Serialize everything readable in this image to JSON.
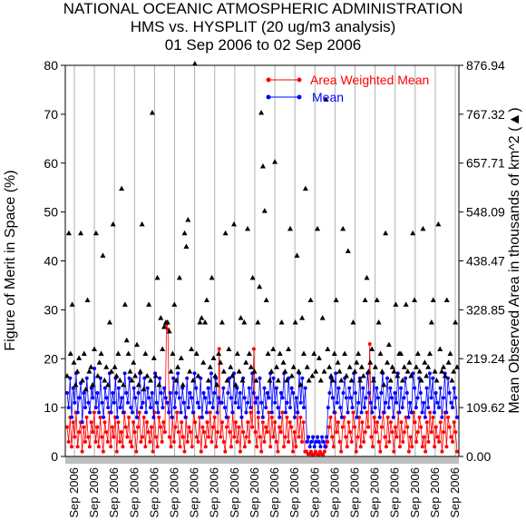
{
  "chart_data": {
    "type": "line",
    "title": "NATIONAL OCEANIC ATMOSPHERIC ADMINISTRATION",
    "subtitle": "HMS vs. HYSPLIT (20 ug/m3 analysis)",
    "date_range": "01 Sep 2006 to 02 Sep 2006",
    "ylabel": "Figure of Merit in Space (%)",
    "y2label": "Mean Observed Area in thousands of km^2 (▲)",
    "ylim": [
      0,
      80
    ],
    "y2lim": [
      0,
      876.94
    ],
    "yticks": [
      "0",
      "10",
      "20",
      "30",
      "40",
      "50",
      "60",
      "70",
      "80"
    ],
    "y2ticks": [
      "0.00",
      "109.62",
      "219.24",
      "328.85",
      "438.47",
      "548.09",
      "657.71",
      "767.32",
      "876.94"
    ],
    "xticks": [
      "Sep 2006",
      "Sep 2006",
      "Sep 2006",
      "Sep 2006",
      "Sep 2006",
      "Sep 2006",
      "Sep 2006",
      "Sep 2006",
      "Sep 2006",
      "Sep 2006",
      "Sep 2006",
      "Sep 2006",
      "Sep 2006",
      "Sep 2006",
      "Sep 2006",
      "Sep 2006",
      "Sep 2006",
      "Sep 2006",
      "Sep 2006",
      "Sep 2006",
      "Sep 2006",
      "Sep 2006",
      "Sep 2006",
      "Sep 2006",
      "Sep 2006",
      "Sep 2006",
      "Sep 2006",
      "Sep 2006",
      "Sep 2006",
      "Sep 2006",
      "Sep 2006",
      "Sep 2006",
      "Sep 2006",
      "Sep 2006",
      "Sep 2006",
      "Sep 2006",
      "Sep 2006",
      "Sep 2006",
      "Sep 2006",
      "Sep 2006",
      "Sep 2006",
      "Sep 2006",
      "Sep 2006",
      "Sep 2006",
      "Sep 2006",
      "Sep 2006",
      "Sep 2006",
      "Sep 2006",
      "Sep 2006",
      "Sep 2006",
      "Sep 2006",
      "Sep 2006",
      "Sep 2006",
      "Sep 2006",
      "Sep 2006",
      "Sep 2006",
      "Sep 2006",
      "Sep 2006",
      "Sep 2006",
      "Sep 2006",
      "Sep 2006",
      "Sep 2006",
      "Sep 2006",
      "Sep 2006",
      "Sep 2006",
      "Sep 2006",
      "Sep 2006",
      "Sep 2006",
      "Sep 2006",
      "Sep 2006",
      "Sep 2006",
      "Sep 2006",
      "Sep 2006",
      "Sep 2006",
      "Sep 2006",
      "Sep 2006",
      "Sep 2006",
      "Sep 2006",
      "Sep 2006",
      "Sep 2006",
      "Sep 2006",
      "Sep 2006",
      "Sep 2006",
      "Sep 2006",
      "Sep 2006",
      "Sep 2006",
      "Sep 2006",
      "Sep 2006",
      "Sep 2006",
      "Sep 2006",
      "Sep 2006",
      "Sep 2006",
      "Sep 2006",
      "Sep 2006",
      "Sep 2006",
      "Sep 2006",
      "Sep 2006",
      "Sep 2006",
      "Sep 2006",
      "Sep 2006",
      "Sep 2006",
      "Sep 2006",
      "Sep 2006",
      "Sep 2006",
      "Sep 2006",
      "Sep 2006",
      "Sep 2006",
      "Sep 2006",
      "Sep 2006",
      "Sep 2006",
      "Sep 2006",
      "Sep 2006",
      "Sep 2006",
      "Sep 2006",
      "Sep 2006",
      "Sep 2006",
      "Sep 2006",
      "Sep 2006",
      "Sep 2006",
      "Sep 2006",
      "Sep 2006",
      "Sep 2006",
      "Sep 2006",
      "Sep 2006",
      "Sep 2006",
      "Sep 2006",
      "Sep 2006",
      "Sep 2006",
      "Sep 2006",
      "Sep 2006",
      "Sep 2006",
      "Sep 2006",
      "Sep 2006",
      "Sep 2006",
      "Sep 2006",
      "Sep 2006",
      "Sep 2006",
      "Sep 2006",
      "Sep 2006",
      "Sep 2006",
      "Sep 2006",
      "Sep 2006",
      "Sep 2006",
      "Sep 2006",
      "Sep 2006",
      "Sep 2006",
      "Sep 2006",
      "Sep 2006",
      "Sep 2006",
      "Sep 2006",
      "Sep 2006",
      "Sep 2006",
      "Sep 2006",
      "Sep 2006",
      "Sep 2006",
      "Sep 2006",
      "Sep 2006",
      "Sep 2006",
      "Sep 2006",
      "Sep 2006",
      "Sep 2006",
      "Sep 2006",
      "Sep 2006",
      "Sep 2006",
      "Sep 2006",
      "Sep 2006",
      "Sep 2006",
      "Sep 2006",
      "Sep 2006",
      "Sep 2006",
      "Sep 2006",
      "Sep 2006",
      "Sep 2006",
      "Sep 2006"
    ],
    "xticks_shown": [
      "Sep 2006",
      "Sep 2006",
      "Sep 2006",
      "Sep 2006",
      "Sep 2006",
      "Sep 2006",
      "Sep 2006",
      "Sep 2006",
      "Sep 2006",
      "Sep 2006",
      "Sep 2006",
      "Sep 2006",
      "Sep 2006",
      "Sep 2006",
      "Sep 2006",
      "Sep 2006",
      "Sep 2006",
      "Sep 2006",
      "Sep 2006",
      "Sep 2006"
    ],
    "legend": {
      "placement": "top-right"
    },
    "series": [
      {
        "name": "Area Weighted Mean",
        "color": "#ff0000",
        "axis": "left",
        "values": [
          6,
          3,
          8,
          2,
          7,
          4,
          9,
          2,
          5,
          7,
          1,
          6,
          3,
          8,
          4,
          2,
          7,
          5,
          9,
          3,
          6,
          2,
          8,
          4,
          1,
          7,
          5,
          3,
          9,
          2,
          6,
          4,
          8,
          1,
          7,
          3,
          5,
          2,
          9,
          6,
          4,
          8,
          3,
          2,
          7,
          5,
          1,
          6,
          9,
          3,
          4,
          8,
          2,
          7,
          5,
          3,
          6,
          1,
          9,
          4,
          2,
          8,
          6,
          3,
          7,
          5,
          27,
          26,
          4,
          2,
          8,
          3,
          6,
          9,
          5,
          2,
          7,
          4,
          1,
          8,
          3,
          6,
          5,
          2,
          9,
          7,
          4,
          3,
          8,
          1,
          6,
          5,
          2,
          7,
          4,
          9,
          3,
          6,
          8,
          2,
          5,
          22,
          4,
          7,
          3,
          1,
          6,
          8,
          5,
          2,
          9,
          4,
          7,
          3,
          6,
          1,
          8,
          5,
          2,
          4,
          7,
          3,
          9,
          6,
          22,
          5,
          2,
          8,
          4,
          1,
          7,
          3,
          6,
          5,
          9,
          2,
          8,
          4,
          7,
          3,
          1,
          6,
          5,
          9,
          2,
          4,
          8,
          3,
          7,
          6,
          1,
          5,
          2,
          9,
          4,
          8,
          3,
          7,
          1,
          1,
          0.5,
          0.5,
          1,
          0.3,
          0.5,
          1,
          0.5,
          0.3,
          1,
          0.5,
          0.4,
          1,
          2,
          3,
          6,
          8,
          4,
          2,
          9,
          5,
          7,
          3,
          1,
          6,
          8,
          4,
          2,
          7,
          5,
          3,
          9,
          6,
          1,
          4,
          8,
          2,
          7,
          3,
          5,
          9,
          6,
          23,
          4,
          2,
          8,
          5,
          7,
          3,
          1,
          6,
          9,
          4,
          2,
          8,
          3,
          7,
          5,
          1,
          6,
          4,
          9,
          2,
          7,
          3,
          5,
          8,
          6,
          1,
          4,
          2,
          9,
          7,
          3,
          5,
          8,
          6,
          2,
          4,
          1,
          7,
          3,
          9,
          5,
          8,
          2,
          6,
          4,
          3,
          7,
          1,
          5,
          9,
          2,
          8,
          6,
          4,
          3,
          7,
          5,
          1
        ]
      },
      {
        "name": "Mean",
        "color": "#0000ff",
        "axis": "left",
        "values": [
          13,
          10,
          16,
          8,
          14,
          11,
          17,
          9,
          12,
          15,
          7,
          13,
          10,
          16,
          11,
          9,
          14,
          12,
          18,
          10,
          13,
          9,
          16,
          11,
          8,
          14,
          12,
          10,
          17,
          9,
          13,
          11,
          16,
          8,
          14,
          10,
          12,
          9,
          17,
          13,
          11,
          16,
          10,
          9,
          14,
          12,
          8,
          13,
          17,
          10,
          11,
          16,
          9,
          14,
          12,
          10,
          13,
          8,
          17,
          11,
          9,
          16,
          13,
          10,
          14,
          12,
          11,
          9,
          13,
          8,
          16,
          10,
          13,
          17,
          12,
          9,
          14,
          11,
          8,
          16,
          10,
          13,
          12,
          9,
          17,
          14,
          11,
          10,
          16,
          8,
          13,
          12,
          9,
          14,
          11,
          17,
          10,
          13,
          16,
          9,
          12,
          11,
          11,
          14,
          10,
          8,
          13,
          16,
          12,
          9,
          17,
          11,
          14,
          10,
          13,
          8,
          16,
          12,
          9,
          11,
          14,
          10,
          17,
          13,
          11,
          12,
          9,
          16,
          11,
          8,
          14,
          10,
          13,
          12,
          17,
          9,
          16,
          11,
          14,
          10,
          8,
          13,
          12,
          17,
          9,
          11,
          16,
          10,
          14,
          13,
          8,
          12,
          9,
          17,
          11,
          16,
          10,
          14,
          3,
          4,
          2,
          3,
          4,
          2,
          3,
          4,
          3,
          2,
          4,
          3,
          2,
          4,
          10,
          13,
          16,
          12,
          9,
          17,
          11,
          14,
          10,
          8,
          13,
          16,
          12,
          9,
          14,
          12,
          10,
          17,
          13,
          8,
          11,
          16,
          9,
          14,
          10,
          12,
          17,
          13,
          11,
          9,
          16,
          10,
          14,
          12,
          8,
          13,
          17,
          9,
          11,
          16,
          10,
          14,
          12,
          8,
          13,
          11,
          17,
          9,
          14,
          10,
          12,
          16,
          13,
          8,
          11,
          9,
          17,
          14,
          10,
          12,
          16,
          13,
          9,
          11,
          8,
          14,
          10,
          17,
          12,
          16,
          9,
          13,
          11,
          10,
          14,
          8,
          12,
          17,
          9,
          16,
          13,
          11,
          10,
          14,
          12,
          8
        ]
      },
      {
        "name": "Mean Observed Area",
        "color": "#000000",
        "axis": "right",
        "marker": "triangle",
        "values": [
          180,
          500,
          230,
          340,
          210,
          160,
          190,
          220,
          500,
          170,
          230,
          150,
          350,
          190,
          200,
          160,
          240,
          500,
          180,
          210,
          230,
          450,
          170,
          200,
          160,
          300,
          190,
          520,
          200,
          180,
          230,
          170,
          600,
          160,
          340,
          260,
          230,
          190,
          170,
          210,
          180,
          250,
          160,
          190,
          520,
          150,
          230,
          180,
          340,
          170,
          770,
          220,
          180,
          400,
          160,
          310,
          240,
          290,
          300,
          300,
          280,
          190,
          230,
          340,
          170,
          200,
          400,
          220,
          160,
          500,
          470,
          530,
          190,
          240,
          170,
          880,
          230,
          180,
          300,
          310,
          210,
          300,
          350,
          170,
          200,
          400,
          220,
          180,
          160,
          230,
          210,
          300,
          190,
          500,
          170,
          240,
          200,
          180,
          520,
          160,
          230,
          190,
          310,
          170,
          300,
          210,
          510,
          230,
          200,
          400,
          190,
          170,
          300,
          380,
          770,
          650,
          550,
          350,
          230,
          170,
          190,
          240,
          660,
          200,
          170,
          230,
          300,
          210,
          190,
          170,
          240,
          510,
          180,
          200,
          300,
          450,
          190,
          160,
          310,
          230,
          600,
          200,
          170,
          350,
          180,
          230,
          190,
          510,
          220,
          170,
          310,
          190,
          800,
          240,
          200,
          180,
          170,
          230,
          350,
          210,
          190,
          170,
          510,
          230,
          180,
          460,
          200,
          170,
          300,
          190,
          210,
          230,
          170,
          200,
          180,
          350,
          400,
          190,
          210,
          240,
          170,
          200,
          350,
          300,
          230,
          190,
          160,
          500,
          210,
          250,
          170,
          200,
          190,
          340,
          180,
          230,
          230,
          170,
          200,
          340,
          190,
          210,
          180,
          500,
          350,
          200,
          230,
          190,
          170,
          510,
          210,
          180,
          200,
          230,
          300,
          350,
          190,
          170,
          520,
          240,
          190,
          200,
          180,
          350,
          210,
          230,
          170,
          190,
          300,
          200
        ]
      }
    ]
  }
}
